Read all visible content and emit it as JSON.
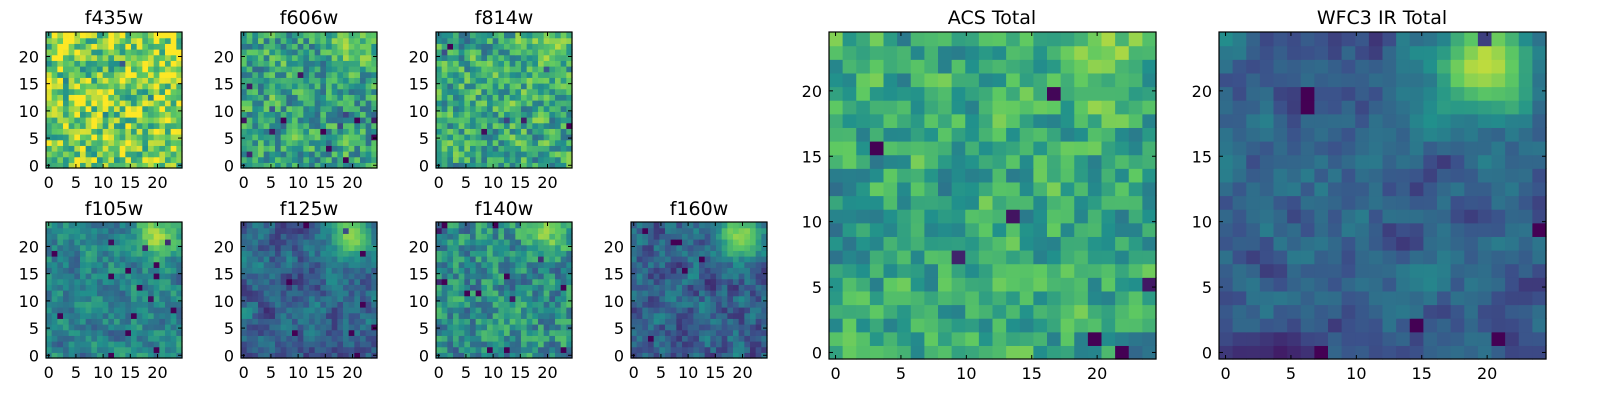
{
  "chart_data": [
    {
      "type": "heatmap",
      "title": "f435w",
      "grid": "24x24",
      "xticks": [
        "0",
        "5",
        "10",
        "15",
        "20"
      ],
      "yticks": [
        "0",
        "5",
        "10",
        "15",
        "20"
      ],
      "xlim": [
        0,
        24
      ],
      "ylim": [
        0,
        24
      ],
      "colormap": "viridis",
      "peak": [
        19,
        21
      ],
      "peak_level": 0.0,
      "noise_level": 0.55,
      "base_level": 0.78,
      "seed": 11
    },
    {
      "type": "heatmap",
      "title": "f606w",
      "grid": "24x24",
      "xticks": [
        "0",
        "5",
        "10",
        "15",
        "20"
      ],
      "yticks": [
        "0",
        "5",
        "10",
        "15",
        "20"
      ],
      "xlim": [
        0,
        24
      ],
      "ylim": [
        0,
        24
      ],
      "colormap": "viridis",
      "peak": [
        19,
        21
      ],
      "peak_level": 0.35,
      "noise_level": 0.45,
      "base_level": 0.58,
      "seed": 23
    },
    {
      "type": "heatmap",
      "title": "f814w",
      "grid": "24x24",
      "xticks": [
        "0",
        "5",
        "10",
        "15",
        "20"
      ],
      "yticks": [
        "0",
        "5",
        "10",
        "15",
        "20"
      ],
      "xlim": [
        0,
        24
      ],
      "ylim": [
        0,
        24
      ],
      "colormap": "viridis",
      "peak": [
        19,
        21
      ],
      "peak_level": 0.4,
      "noise_level": 0.45,
      "base_level": 0.6,
      "seed": 37
    },
    {
      "type": "heatmap",
      "title": "f105w",
      "grid": "24x24",
      "xticks": [
        "0",
        "5",
        "10",
        "15",
        "20"
      ],
      "yticks": [
        "0",
        "5",
        "10",
        "15",
        "20"
      ],
      "xlim": [
        0,
        24
      ],
      "ylim": [
        0,
        24
      ],
      "colormap": "viridis",
      "peak": [
        19,
        21
      ],
      "peak_level": 0.6,
      "noise_level": 0.25,
      "base_level": 0.45,
      "seed": 41
    },
    {
      "type": "heatmap",
      "title": "f125w",
      "grid": "24x24",
      "xticks": [
        "0",
        "5",
        "10",
        "15",
        "20"
      ],
      "yticks": [
        "0",
        "5",
        "10",
        "15",
        "20"
      ],
      "xlim": [
        0,
        24
      ],
      "ylim": [
        0,
        24
      ],
      "colormap": "viridis",
      "peak": [
        19,
        21
      ],
      "peak_level": 0.7,
      "noise_level": 0.22,
      "base_level": 0.32,
      "seed": 53
    },
    {
      "type": "heatmap",
      "title": "f140w",
      "grid": "24x24",
      "xticks": [
        "0",
        "5",
        "10",
        "15",
        "20"
      ],
      "yticks": [
        "0",
        "5",
        "10",
        "15",
        "20"
      ],
      "xlim": [
        0,
        24
      ],
      "ylim": [
        0,
        24
      ],
      "colormap": "viridis",
      "peak": [
        19,
        21
      ],
      "peak_level": 0.45,
      "noise_level": 0.38,
      "base_level": 0.5,
      "seed": 67
    },
    {
      "type": "heatmap",
      "title": "f160w",
      "grid": "24x24",
      "xticks": [
        "0",
        "5",
        "10",
        "15",
        "20"
      ],
      "yticks": [
        "0",
        "5",
        "10",
        "15",
        "20"
      ],
      "xlim": [
        0,
        24
      ],
      "ylim": [
        0,
        24
      ],
      "colormap": "viridis",
      "peak": [
        19,
        21
      ],
      "peak_level": 0.7,
      "noise_level": 0.25,
      "base_level": 0.32,
      "seed": 79
    },
    {
      "type": "heatmap",
      "title": "ACS Total",
      "grid": "24x24",
      "xticks": [
        "0",
        "5",
        "10",
        "15",
        "20"
      ],
      "yticks": [
        "0",
        "5",
        "10",
        "15",
        "20"
      ],
      "xlim": [
        0,
        24
      ],
      "ylim": [
        0,
        24
      ],
      "colormap": "viridis",
      "peak": [
        19,
        21
      ],
      "peak_level": 0.3,
      "noise_level": 0.35,
      "base_level": 0.6,
      "seed": 83
    },
    {
      "type": "heatmap",
      "title": "WFC3 IR Total",
      "grid": "24x24",
      "xticks": [
        "0",
        "5",
        "10",
        "15",
        "20"
      ],
      "yticks": [
        "0",
        "5",
        "10",
        "15",
        "20"
      ],
      "xlim": [
        0,
        24
      ],
      "ylim": [
        0,
        24
      ],
      "colormap": "viridis",
      "peak": [
        19,
        21
      ],
      "peak_level": 0.75,
      "noise_level": 0.15,
      "base_level": 0.3,
      "seed": 97
    }
  ]
}
